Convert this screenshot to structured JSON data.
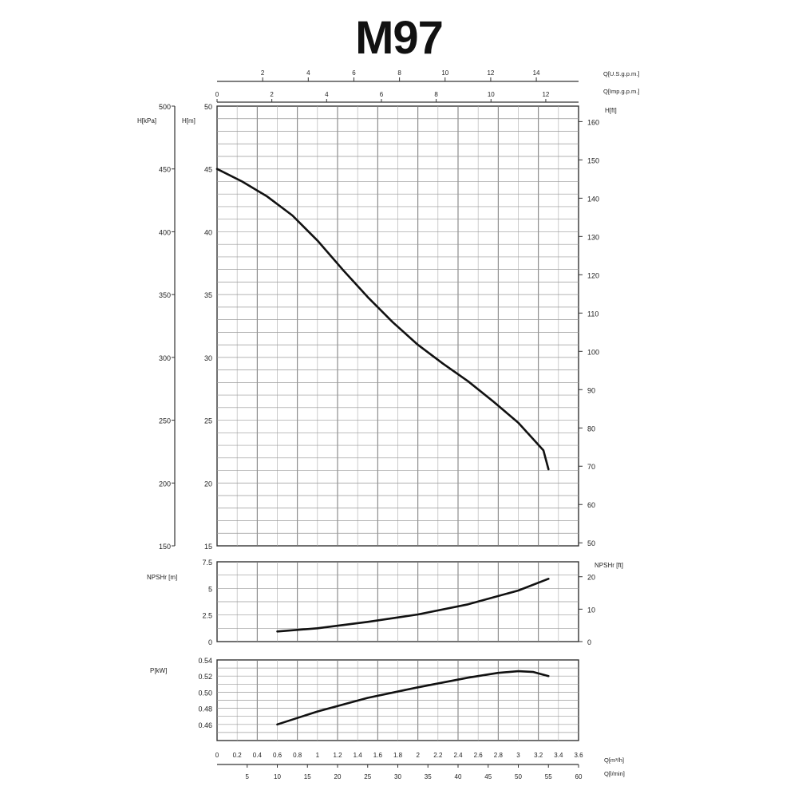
{
  "title": "M97",
  "chart_data": [
    {
      "type": "line",
      "panel": "head",
      "ylabel_left_outer": "H[kPa]",
      "ylabel_left": "H[m]",
      "ylabel_right": "H[ft]",
      "ylim": [
        15,
        50
      ],
      "yticks": [
        "15",
        "20",
        "25",
        "30",
        "35",
        "40",
        "45",
        "50"
      ],
      "kpa_ticks": [
        "150",
        "200",
        "250",
        "300",
        "350",
        "400",
        "450",
        "500"
      ],
      "ft_ticks": [
        "50",
        "60",
        "70",
        "80",
        "90",
        "100",
        "110",
        "120",
        "130",
        "140",
        "150",
        "160"
      ],
      "x_us_label": "Q[U.S.g.p.m.]",
      "x_us_ticks": [
        "2",
        "4",
        "6",
        "8",
        "10",
        "12",
        "14"
      ],
      "x_imp_label": "Q[Imp.g.p.m.]",
      "x_imp_ticks": [
        "0",
        "2",
        "4",
        "6",
        "8",
        "10",
        "12"
      ],
      "x": [
        0,
        0.25,
        0.5,
        0.75,
        1.0,
        1.25,
        1.5,
        1.75,
        2.0,
        2.25,
        2.5,
        2.75,
        3.0,
        3.25,
        3.3
      ],
      "y": [
        45.0,
        44.0,
        42.8,
        41.3,
        39.3,
        37.0,
        34.8,
        32.8,
        31.0,
        29.5,
        28.1,
        26.5,
        24.8,
        22.6,
        21.1
      ],
      "grid": true
    },
    {
      "type": "line",
      "panel": "npsh",
      "ylabel_left": "NPSHr [m]",
      "ylabel_right": "NPSHr [ft]",
      "ylim": [
        0,
        7.5
      ],
      "yticks": [
        "0",
        "2.5",
        "5",
        "7.5"
      ],
      "ft_ticks": [
        "0",
        "10",
        "20"
      ],
      "x": [
        0.6,
        1.0,
        1.5,
        2.0,
        2.5,
        3.0,
        3.3
      ],
      "y": [
        0.95,
        1.25,
        1.85,
        2.55,
        3.5,
        4.8,
        5.9
      ],
      "grid": true
    },
    {
      "type": "line",
      "panel": "power",
      "ylabel_left": "P[kW]",
      "ylim": [
        0.44,
        0.54
      ],
      "yticks": [
        "0.46",
        "0.48",
        "0.50",
        "0.52",
        "0.54"
      ],
      "x_m3h_label": "Q[m³/h]",
      "x_m3h_ticks": [
        "0",
        "0.2",
        "0.4",
        "0.6",
        "0.8",
        "1",
        "1.2",
        "1.4",
        "1.6",
        "1.8",
        "2",
        "2.2",
        "2.4",
        "2.6",
        "2.8",
        "3",
        "3.2",
        "3.4",
        "3.6"
      ],
      "x_lmin_label": "Q[l/min]",
      "x_lmin_ticks": [
        "5",
        "10",
        "15",
        "20",
        "25",
        "30",
        "35",
        "40",
        "45",
        "50",
        "55",
        "60"
      ],
      "x": [
        0.6,
        1.0,
        1.5,
        2.0,
        2.5,
        2.8,
        3.0,
        3.15,
        3.3
      ],
      "y": [
        0.46,
        0.476,
        0.493,
        0.506,
        0.518,
        0.524,
        0.526,
        0.525,
        0.52
      ],
      "grid": true
    }
  ]
}
